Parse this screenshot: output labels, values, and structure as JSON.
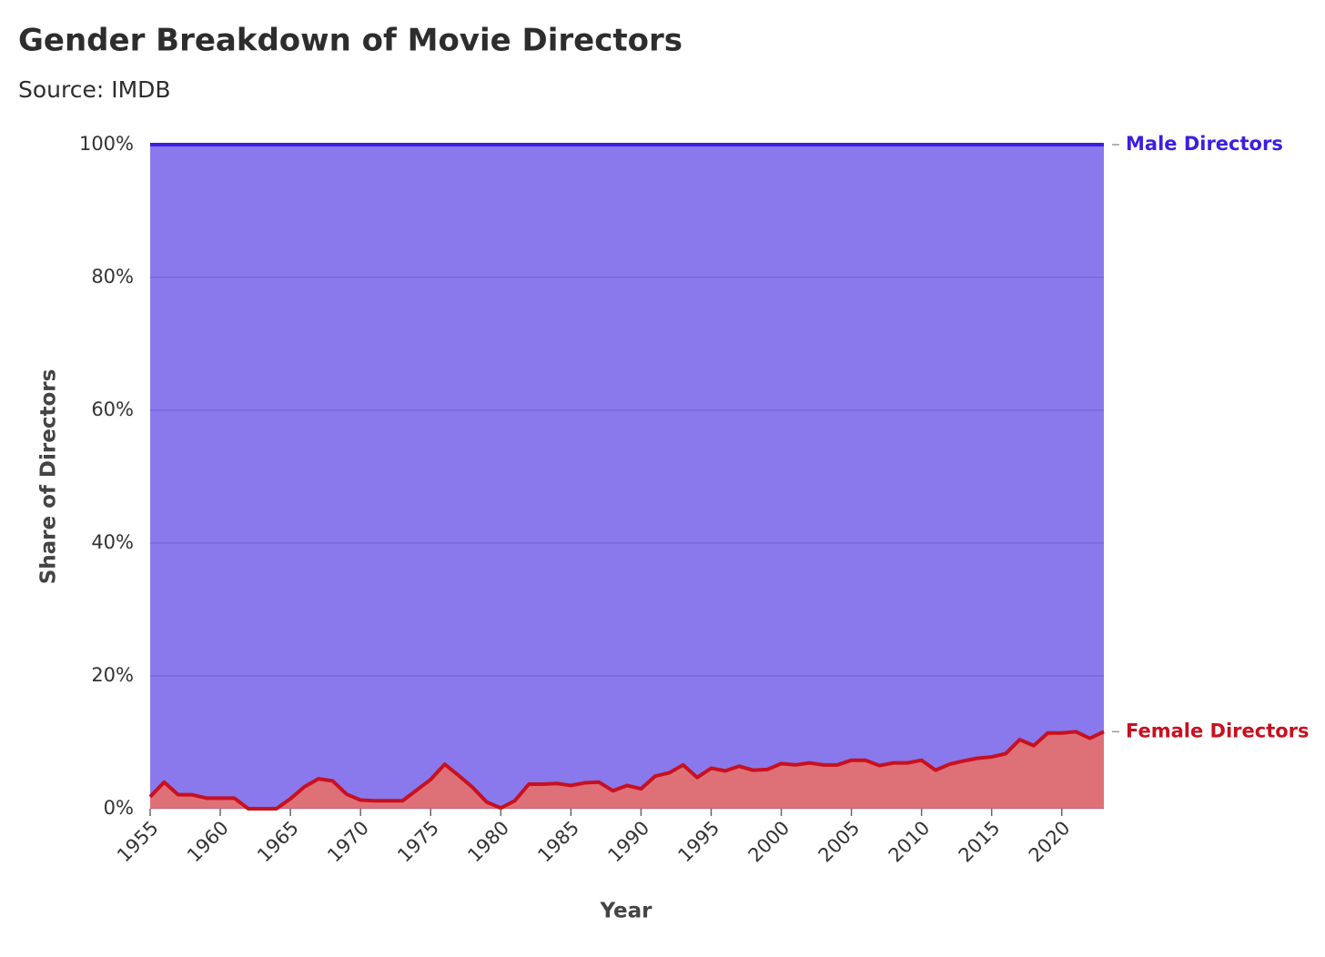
{
  "chart_data": {
    "type": "stacked_area",
    "title": "Gender Breakdown of Movie Directors",
    "subtitle": "Source: IMDB",
    "x_label": "Year",
    "y_label": "Share of Directors",
    "x": [
      1955,
      1956,
      1957,
      1958,
      1959,
      1960,
      1961,
      1962,
      1963,
      1964,
      1965,
      1966,
      1967,
      1968,
      1969,
      1970,
      1971,
      1972,
      1973,
      1974,
      1975,
      1976,
      1977,
      1978,
      1979,
      1980,
      1981,
      1982,
      1983,
      1984,
      1985,
      1986,
      1987,
      1988,
      1989,
      1990,
      1991,
      1992,
      1993,
      1994,
      1995,
      1996,
      1997,
      1998,
      1999,
      2000,
      2001,
      2002,
      2003,
      2004,
      2005,
      2006,
      2007,
      2008,
      2009,
      2010,
      2011,
      2012,
      2013,
      2014,
      2015,
      2016,
      2017,
      2018,
      2019,
      2020,
      2021,
      2022,
      2023
    ],
    "series": [
      {
        "name": "Female Directors",
        "color": "#c8101e",
        "values": [
          1.8,
          4.0,
          2.1,
          2.1,
          1.6,
          1.6,
          1.6,
          0,
          0,
          0,
          1.5,
          3.3,
          4.5,
          4.2,
          2.2,
          1.3,
          1.2,
          1.2,
          1.2,
          2.8,
          4.4,
          6.7,
          5.0,
          3.2,
          1.0,
          0.1,
          1.2,
          3.7,
          3.7,
          3.8,
          3.5,
          3.9,
          4.0,
          2.7,
          3.5,
          3.0,
          4.9,
          5.4,
          6.6,
          4.7,
          6.1,
          5.7,
          6.4,
          5.8,
          5.9,
          6.8,
          6.6,
          6.9,
          6.6,
          6.6,
          7.3,
          7.3,
          6.5,
          6.9,
          6.9,
          7.3,
          5.8,
          6.7,
          7.2,
          7.6,
          7.8,
          8.3,
          10.4,
          9.5,
          11.4,
          11.4,
          11.6,
          10.6,
          11.6
        ]
      },
      {
        "name": "Male Directors",
        "color": "#3b1fe0",
        "values": [
          98.2,
          96.0,
          97.9,
          97.9,
          98.4,
          98.4,
          98.4,
          100,
          100,
          100,
          98.5,
          96.7,
          95.5,
          95.8,
          97.8,
          98.7,
          98.8,
          98.8,
          98.8,
          97.2,
          95.6,
          93.3,
          95.0,
          96.8,
          99.0,
          99.9,
          98.8,
          96.3,
          96.3,
          96.2,
          96.5,
          96.1,
          96.0,
          97.3,
          96.5,
          97.0,
          95.1,
          94.6,
          93.4,
          95.3,
          93.9,
          94.3,
          93.6,
          94.2,
          94.1,
          93.2,
          93.4,
          93.1,
          93.4,
          93.4,
          92.7,
          92.7,
          93.5,
          93.1,
          93.1,
          92.7,
          94.2,
          93.3,
          92.8,
          92.4,
          92.2,
          91.7,
          89.6,
          90.5,
          88.6,
          88.6,
          88.4,
          89.4,
          88.4
        ]
      }
    ],
    "xlim": [
      1955,
      2023
    ],
    "xticks": [
      1955,
      1960,
      1965,
      1970,
      1975,
      1980,
      1985,
      1990,
      1995,
      2000,
      2005,
      2010,
      2015,
      2020
    ],
    "ylim": [
      0,
      100
    ],
    "yticks": [
      {
        "value": 0,
        "label": "0%"
      },
      {
        "value": 20,
        "label": "20%"
      },
      {
        "value": 40,
        "label": "40%"
      },
      {
        "value": 60,
        "label": "60%"
      },
      {
        "value": 80,
        "label": "80%"
      },
      {
        "value": 100,
        "label": "100%"
      }
    ],
    "grid": true
  }
}
